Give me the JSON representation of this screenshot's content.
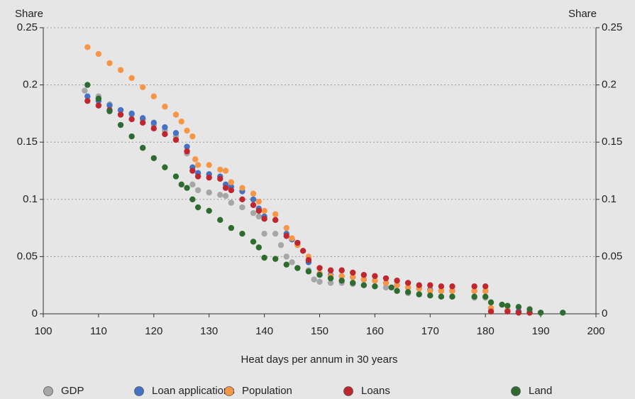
{
  "chart_data": {
    "type": "scatter",
    "x_label": "Heat days per annum in 30 years",
    "y_label": "Share",
    "y2_label": "Share",
    "xlim": [
      100,
      200
    ],
    "xticks": [
      100,
      110,
      120,
      130,
      140,
      150,
      160,
      170,
      180,
      190,
      200
    ],
    "ylim": [
      0,
      0.25
    ],
    "yticks": [
      0,
      0.05,
      0.1,
      0.15,
      0.2,
      0.25
    ],
    "y2lim": [
      0,
      0.25
    ],
    "y2ticks": [
      0,
      0.05,
      0.1,
      0.15,
      0.2,
      0.25
    ],
    "grid": true,
    "legend": "bottom",
    "series": [
      {
        "name": "GDP",
        "color": "#a6a6a6",
        "x": [
          107.5,
          110,
          112,
          114,
          116,
          118,
          120,
          122,
          124,
          126,
          127,
          128,
          130,
          132,
          133,
          134,
          136,
          138,
          139,
          140,
          142,
          143,
          144,
          145,
          146,
          148,
          149,
          150,
          152,
          154,
          156,
          158,
          160,
          162,
          164,
          166,
          168,
          170,
          172,
          174,
          178,
          180,
          181,
          184,
          186,
          188,
          190
        ],
        "values": [
          0.195,
          0.19,
          0.183,
          0.178,
          0.174,
          0.17,
          0.165,
          0.16,
          0.155,
          0.14,
          0.113,
          0.108,
          0.106,
          0.104,
          0.103,
          0.097,
          0.093,
          0.088,
          0.085,
          0.07,
          0.07,
          0.06,
          0.05,
          0.045,
          0.04,
          0.038,
          0.03,
          0.028,
          0.027,
          0.027,
          0.026,
          0.025,
          0.024,
          0.023,
          0.02,
          0.018,
          0.017,
          0.016,
          0.015,
          0.015,
          0.014,
          0.014,
          0.005,
          0.003,
          0.002,
          0.001,
          0.001
        ]
      },
      {
        "name": "Loan applications",
        "color": "#4472c4",
        "x": [
          108,
          110,
          112,
          114,
          116,
          118,
          120,
          122,
          124,
          126,
          127,
          128,
          130,
          132,
          133,
          134,
          136,
          138,
          139,
          140,
          142,
          144,
          145,
          146,
          148,
          150,
          152,
          154,
          156,
          158,
          160,
          162,
          164,
          166,
          168,
          170,
          172,
          174,
          178,
          180,
          181,
          184,
          186,
          188
        ],
        "values": [
          0.19,
          0.186,
          0.182,
          0.178,
          0.175,
          0.171,
          0.167,
          0.163,
          0.158,
          0.146,
          0.128,
          0.123,
          0.122,
          0.12,
          0.113,
          0.111,
          0.107,
          0.1,
          0.092,
          0.085,
          0.082,
          0.07,
          0.065,
          0.062,
          0.045,
          0.035,
          0.034,
          0.033,
          0.032,
          0.03,
          0.029,
          0.027,
          0.025,
          0.023,
          0.022,
          0.021,
          0.02,
          0.02,
          0.02,
          0.02,
          0.005,
          0.003,
          0.002,
          0.001
        ]
      },
      {
        "name": "Population",
        "color": "#f79646",
        "x": [
          108,
          110,
          112,
          114,
          116,
          118,
          120,
          122,
          124,
          125,
          126,
          127,
          127.5,
          128,
          130,
          132,
          133,
          134,
          136,
          138,
          139,
          140,
          142,
          144,
          145,
          146,
          148,
          150,
          152,
          154,
          156,
          158,
          160,
          162,
          164,
          166,
          168,
          170,
          172,
          174,
          178,
          180,
          181,
          184,
          188
        ],
        "values": [
          0.233,
          0.227,
          0.219,
          0.213,
          0.206,
          0.198,
          0.19,
          0.181,
          0.174,
          0.168,
          0.16,
          0.155,
          0.135,
          0.13,
          0.13,
          0.126,
          0.125,
          0.115,
          0.11,
          0.105,
          0.098,
          0.09,
          0.087,
          0.075,
          0.066,
          0.06,
          0.05,
          0.035,
          0.033,
          0.033,
          0.032,
          0.03,
          0.029,
          0.027,
          0.025,
          0.023,
          0.022,
          0.02,
          0.02,
          0.02,
          0.02,
          0.02,
          0.005,
          0.003,
          0.001
        ]
      },
      {
        "name": "Loans",
        "color": "#c0262d",
        "x": [
          108,
          110,
          112,
          114,
          116,
          118,
          120,
          122,
          124,
          126,
          127,
          128,
          130,
          132,
          133,
          134,
          136,
          138,
          139,
          140,
          142,
          144,
          146,
          147,
          148,
          150,
          152,
          154,
          156,
          158,
          160,
          162,
          164,
          166,
          168,
          170,
          172,
          174,
          178,
          180,
          181,
          184,
          186,
          188
        ],
        "values": [
          0.186,
          0.182,
          0.178,
          0.174,
          0.17,
          0.167,
          0.162,
          0.157,
          0.152,
          0.142,
          0.125,
          0.12,
          0.119,
          0.118,
          0.11,
          0.108,
          0.1,
          0.095,
          0.09,
          0.083,
          0.082,
          0.068,
          0.062,
          0.055,
          0.047,
          0.04,
          0.038,
          0.038,
          0.036,
          0.034,
          0.033,
          0.031,
          0.029,
          0.027,
          0.025,
          0.025,
          0.024,
          0.024,
          0.024,
          0.024,
          0.002,
          0.002,
          0.001,
          0.001
        ]
      },
      {
        "name": "Land",
        "color": "#2e6b2e",
        "x": [
          108,
          110,
          112,
          114,
          116,
          118,
          120,
          122,
          124,
          125,
          126,
          127,
          128,
          130,
          132,
          134,
          136,
          138,
          139,
          140,
          142,
          144,
          146,
          148,
          150,
          152,
          154,
          156,
          158,
          160,
          163,
          164,
          166,
          168,
          170,
          172,
          174,
          178,
          180,
          181,
          183,
          184,
          186,
          188,
          190,
          194
        ],
        "values": [
          0.2,
          0.188,
          0.177,
          0.165,
          0.155,
          0.145,
          0.136,
          0.128,
          0.12,
          0.113,
          0.11,
          0.1,
          0.093,
          0.09,
          0.082,
          0.075,
          0.07,
          0.063,
          0.058,
          0.049,
          0.048,
          0.043,
          0.04,
          0.037,
          0.034,
          0.031,
          0.029,
          0.027,
          0.025,
          0.024,
          0.023,
          0.02,
          0.019,
          0.017,
          0.016,
          0.015,
          0.015,
          0.015,
          0.015,
          0.01,
          0.008,
          0.007,
          0.006,
          0.004,
          0.001,
          0.001
        ]
      }
    ]
  }
}
